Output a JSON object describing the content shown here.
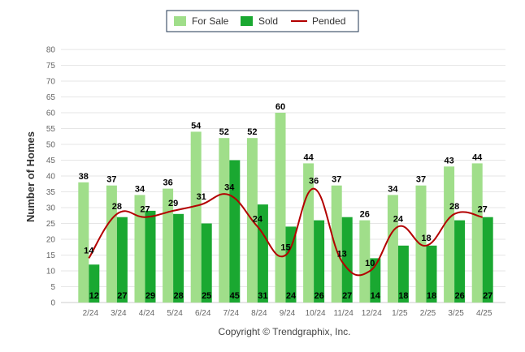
{
  "chart_data": {
    "type": "bar",
    "categories": [
      "2/24",
      "3/24",
      "4/24",
      "5/24",
      "6/24",
      "7/24",
      "8/24",
      "9/24",
      "10/24",
      "11/24",
      "12/24",
      "1/25",
      "2/25",
      "3/25",
      "4/25"
    ],
    "series": [
      {
        "name": "For Sale",
        "type": "bar",
        "color": "#a0de8a",
        "values": [
          38,
          37,
          34,
          36,
          54,
          52,
          52,
          60,
          44,
          37,
          26,
          34,
          37,
          43,
          44
        ]
      },
      {
        "name": "Sold",
        "type": "bar",
        "color": "#1aa831",
        "values": [
          12,
          27,
          29,
          28,
          25,
          45,
          31,
          24,
          26,
          27,
          14,
          18,
          18,
          26,
          27
        ]
      },
      {
        "name": "Pended",
        "type": "line",
        "color": "#b30000",
        "values": [
          14,
          28,
          27,
          29,
          31,
          34,
          24,
          15,
          36,
          13,
          10,
          24,
          18,
          28,
          27
        ]
      }
    ],
    "ylabel": "Number of Homes",
    "xlabel": "",
    "ylim": [
      0,
      80
    ],
    "yticks": [
      0,
      5,
      10,
      15,
      20,
      25,
      30,
      35,
      40,
      45,
      50,
      55,
      60,
      65,
      70,
      75,
      80
    ],
    "grid": true,
    "legend": "top-center",
    "footer": "Copyright © Trendgraphix, Inc."
  }
}
